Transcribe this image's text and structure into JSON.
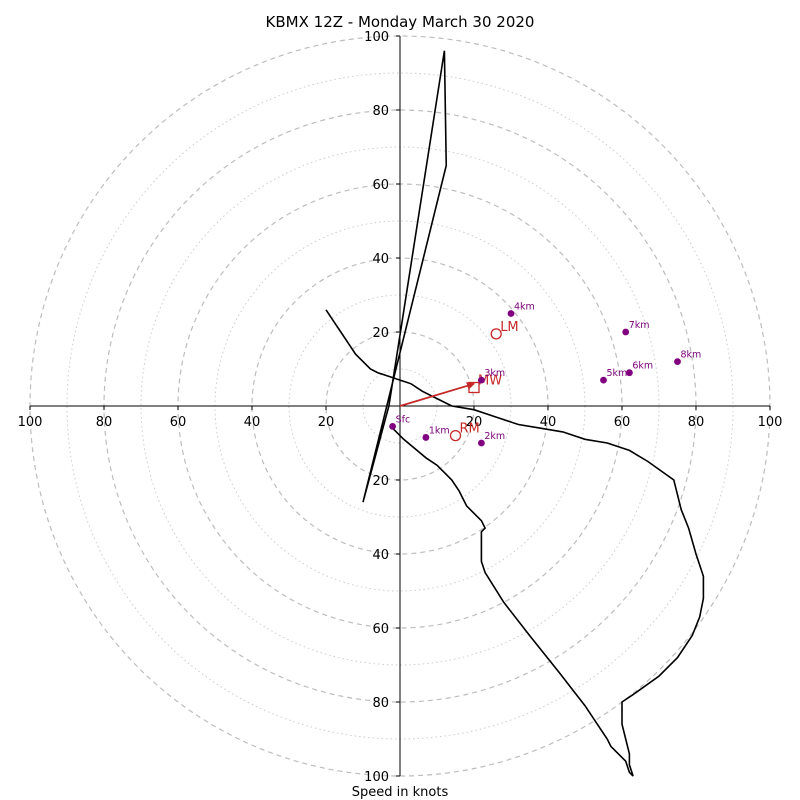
{
  "chart_data": {
    "type": "hodograph",
    "title": "KBMX 12Z - Monday March 30 2020",
    "xlabel": "Speed in knots",
    "xlim": [
      -100,
      100
    ],
    "ylim": [
      -100,
      100
    ],
    "rings_major": [
      20,
      40,
      60,
      80,
      100
    ],
    "rings_minor": [
      10,
      30,
      50,
      70,
      90
    ],
    "ticks": [
      100,
      80,
      60,
      40,
      20
    ],
    "colors": {
      "trace": "#000000",
      "height_marker": "#800080",
      "motion": "#c62828",
      "ring": "#bdbdbd"
    },
    "trace": [
      [
        -2,
        -6
      ],
      [
        1,
        -9
      ],
      [
        4,
        -11.5
      ],
      [
        7,
        -14
      ],
      [
        10,
        -16
      ],
      [
        11,
        -17
      ],
      [
        12,
        -18
      ],
      [
        14,
        -20
      ],
      [
        16,
        -23
      ],
      [
        17,
        -25
      ],
      [
        18,
        -27
      ],
      [
        20,
        -29
      ],
      [
        22,
        -31
      ],
      [
        23,
        -33
      ],
      [
        22,
        -34
      ],
      [
        22,
        -36
      ],
      [
        22,
        -38
      ],
      [
        22,
        -40
      ],
      [
        22,
        -42
      ],
      [
        23,
        -45
      ],
      [
        28,
        -53
      ],
      [
        35,
        -62
      ],
      [
        43,
        -72
      ],
      [
        50,
        -81
      ],
      [
        54,
        -87
      ],
      [
        56,
        -90
      ],
      [
        57,
        -92
      ],
      [
        59,
        -94
      ],
      [
        61,
        -96
      ],
      [
        62,
        -99
      ],
      [
        63,
        -100
      ],
      [
        62,
        -97
      ],
      [
        62,
        -94
      ],
      [
        61,
        -90
      ],
      [
        60,
        -86
      ],
      [
        60,
        -84
      ],
      [
        60,
        -80
      ],
      [
        63,
        -78
      ],
      [
        70,
        -73
      ],
      [
        75,
        -68
      ],
      [
        79,
        -62
      ],
      [
        81,
        -57
      ],
      [
        82,
        -52
      ],
      [
        82,
        -46
      ],
      [
        80,
        -40
      ],
      [
        78,
        -33
      ],
      [
        76,
        -28
      ],
      [
        75,
        -24
      ],
      [
        74,
        -20
      ],
      [
        67,
        -15
      ],
      [
        62,
        -12
      ],
      [
        56,
        -10
      ],
      [
        50,
        -9
      ],
      [
        44,
        -7
      ],
      [
        38,
        -6
      ],
      [
        32,
        -5
      ],
      [
        26,
        -3
      ],
      [
        20,
        -1
      ],
      [
        14,
        0
      ],
      [
        10,
        2
      ],
      [
        6,
        4
      ],
      [
        3,
        6
      ],
      [
        0,
        7
      ],
      [
        -3,
        8
      ],
      [
        -6,
        9
      ],
      [
        -8,
        10
      ],
      [
        -10,
        12
      ],
      [
        -12,
        14
      ],
      [
        -14,
        17
      ],
      [
        -16,
        20
      ],
      [
        -18,
        23
      ],
      [
        -20,
        26
      ]
    ],
    "height_labels": [
      {
        "label": "Sfc",
        "u": -2,
        "v": -5.5
      },
      {
        "label": "1km",
        "u": 7,
        "v": -8.5
      },
      {
        "label": "2km",
        "u": 22,
        "v": -10
      },
      {
        "label": "3km",
        "u": 22,
        "v": 7
      },
      {
        "label": "4km",
        "u": 30,
        "v": 25
      },
      {
        "label": "5km",
        "u": 55,
        "v": 7
      },
      {
        "label": "6km",
        "u": 62,
        "v": 9
      },
      {
        "label": "7km",
        "u": 61,
        "v": 20
      },
      {
        "label": "8km",
        "u": 75,
        "v": 12
      }
    ],
    "storm_motion": [
      {
        "label": "LM",
        "u": 26,
        "v": 19.5,
        "marker": "circle"
      },
      {
        "label": "RM",
        "u": 15,
        "v": -8,
        "marker": "circle"
      },
      {
        "label": "MW",
        "u": 20,
        "v": 5,
        "marker": "square"
      }
    ],
    "arrow": {
      "from": [
        0,
        0
      ],
      "to": [
        20,
        6
      ]
    },
    "left_line": [
      [
        -10,
        -26
      ],
      [
        -3,
        0
      ],
      [
        12,
        96
      ],
      [
        12.5,
        65
      ],
      [
        -10,
        -26
      ]
    ]
  }
}
